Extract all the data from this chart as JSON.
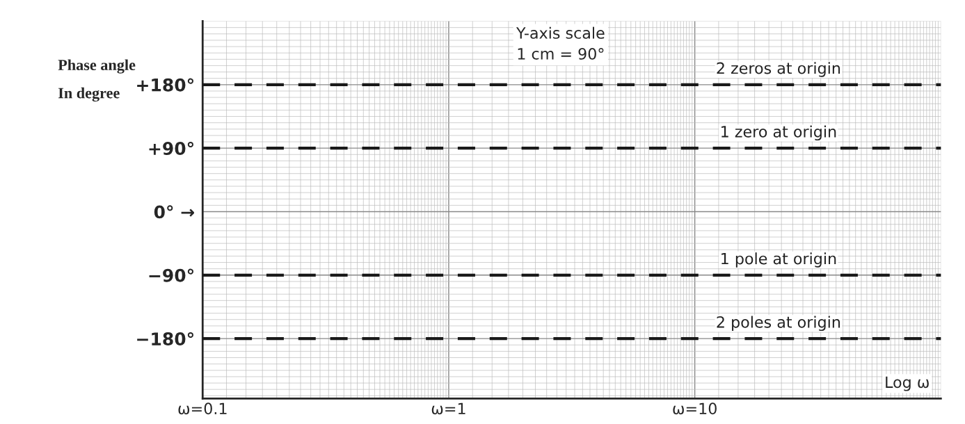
{
  "chart_data": {
    "type": "line",
    "ylabel": "Phase angle\nIn degree",
    "xlabel": "Log ω",
    "x": [
      0.1,
      100
    ],
    "series": [
      {
        "name": "2 zeros at origin",
        "color": "#1a1a1a",
        "values": [
          180,
          180
        ]
      },
      {
        "name": "1 zero at origin",
        "color": "#1a1a1a",
        "values": [
          90,
          90
        ]
      },
      {
        "name": "1 pole at origin",
        "color": "#1a1a1a",
        "values": [
          -90,
          -90
        ]
      },
      {
        "name": "2 poles at origin",
        "color": "#1a1a1a",
        "values": [
          -180,
          -180
        ]
      }
    ],
    "line_style": "dashed",
    "marker": "none",
    "log": "x",
    "xlim": [
      0.1,
      100
    ],
    "xticks": [
      {
        "value": 0.1,
        "label": "ω=0.1"
      },
      {
        "value": 1,
        "label": "ω=1"
      },
      {
        "value": 10,
        "label": "ω=10"
      }
    ],
    "ylim": [
      -265,
      270
    ],
    "yticks": [
      {
        "value": -180,
        "label": "−180°"
      },
      {
        "value": -90,
        "label": "−90°"
      },
      {
        "value": 0,
        "label": "0° →"
      },
      {
        "value": 90,
        "label": "+90°"
      },
      {
        "value": 180,
        "label": "+180°"
      }
    ],
    "grid": true,
    "annotations": [
      "Y-axis scale\n1 cm = 90°"
    ]
  }
}
